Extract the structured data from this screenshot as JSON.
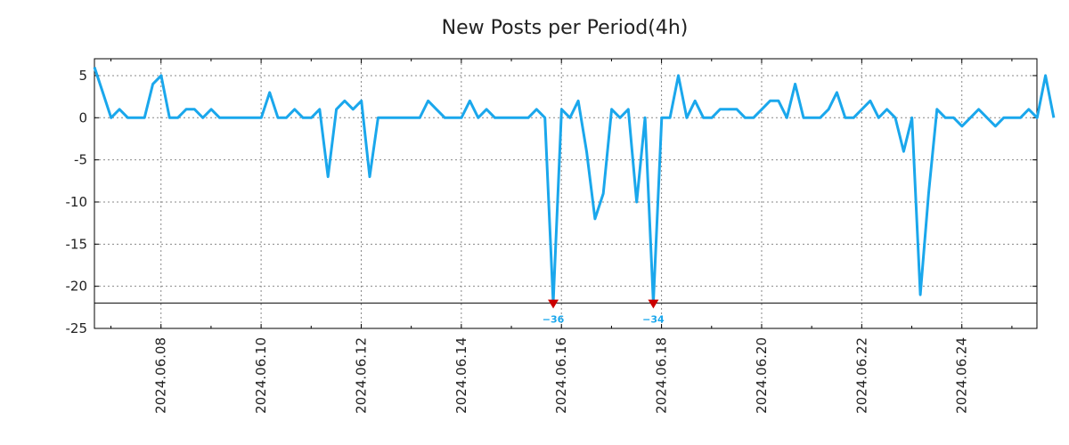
{
  "chart_data": {
    "type": "line",
    "title": "New Posts per Period(4h)",
    "xlabel": "",
    "ylabel": "",
    "ylim": [
      -25,
      7
    ],
    "yticks": [
      5,
      0,
      -5,
      -10,
      -15,
      -20,
      -25
    ],
    "ytick_labels": [
      "5",
      "0",
      "-5",
      "-10",
      "-15",
      "-20",
      "-25"
    ],
    "clip_floor": -22,
    "x_start": "2024.06.06 16:00",
    "x_step_hours": 4,
    "xlim_days": [
      6.67,
      25.5
    ],
    "xticks_days": [
      8,
      10,
      12,
      14,
      16,
      18,
      20,
      22,
      24
    ],
    "xtick_labels": [
      "2024.06.08",
      "2024.06.10",
      "2024.06.12",
      "2024.06.14",
      "2024.06.16",
      "2024.06.18",
      "2024.06.20",
      "2024.06.22",
      "2024.06.24"
    ],
    "grid": true,
    "line_color": "#1aa7ec",
    "clip_marker_color": "#cc0000",
    "series": [
      {
        "name": "New Posts",
        "values": [
          6,
          3,
          0,
          1,
          0,
          0,
          0,
          4,
          5,
          0,
          0,
          1,
          1,
          0,
          1,
          0,
          0,
          0,
          0,
          0,
          0,
          3,
          0,
          0,
          1,
          0,
          0,
          1,
          -7,
          1,
          2,
          1,
          2,
          -7,
          0,
          0,
          0,
          0,
          0,
          0,
          2,
          1,
          0,
          0,
          0,
          2,
          0,
          1,
          0,
          0,
          0,
          0,
          0,
          1,
          0,
          -36,
          1,
          0,
          2,
          -4,
          -12,
          -9,
          1,
          0,
          1,
          -10,
          0,
          -34,
          0,
          0,
          5,
          0,
          2,
          0,
          0,
          1,
          1,
          1,
          0,
          0,
          1,
          2,
          2,
          0,
          4,
          0,
          0,
          0,
          1,
          3,
          0,
          0,
          1,
          2,
          0,
          1,
          0,
          -4,
          0,
          -21,
          -9,
          1,
          0,
          0,
          -1,
          0,
          1,
          0,
          -1,
          0,
          0,
          0,
          1,
          0,
          5,
          0
        ]
      }
    ],
    "clipped_points": [
      {
        "index": 55,
        "label": "−36"
      },
      {
        "index": 67,
        "label": "−34"
      }
    ]
  }
}
